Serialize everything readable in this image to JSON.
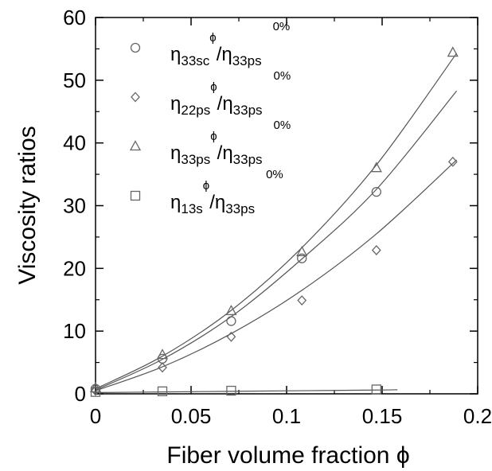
{
  "chart_data": {
    "type": "scatter",
    "title": "",
    "xlabel": "Fiber volume fraction ϕ",
    "ylabel": "Viscosity ratios",
    "xlim": [
      0,
      0.2
    ],
    "ylim": [
      0,
      60
    ],
    "xticks": [
      "0",
      "0.05",
      "0.1",
      "0.15",
      "0.2"
    ],
    "yticks": [
      "0",
      "10",
      "20",
      "30",
      "40",
      "50",
      "60"
    ],
    "grid": false,
    "legend_position": "top-left",
    "series": [
      {
        "name": "η 33sc ϕ / η 33ps 0%",
        "legend": {
          "eta": "η",
          "sub1": "33sc",
          "sup1": "ϕ",
          "slash": "/",
          "eta2": "η",
          "sub2": "33ps",
          "sup2": "0%"
        },
        "marker": "circle",
        "x": [
          0,
          0.035,
          0.071,
          0.108,
          0.147
        ],
        "y": [
          0.8,
          5.6,
          11.6,
          21.6,
          32.2
        ],
        "fit": [
          [
            0,
            0.6
          ],
          [
            0.035,
            5.5
          ],
          [
            0.071,
            12.3
          ],
          [
            0.108,
            21.5
          ],
          [
            0.147,
            32.6
          ],
          [
            0.189,
            48.3
          ]
        ]
      },
      {
        "name": "η 22ps ϕ / η 33ps 0%",
        "legend": {
          "eta": "η",
          "sub1": "22ps",
          "sup1": "ϕ",
          "slash": "/",
          "eta2": "η",
          "sub2": "33ps",
          "sup2": "0%"
        },
        "marker": "diamond",
        "x": [
          0,
          0.035,
          0.071,
          0.108,
          0.147,
          0.187
        ],
        "y": [
          0.5,
          4.2,
          9.1,
          14.9,
          22.9,
          37.0
        ],
        "fit": [
          [
            0,
            0.5
          ],
          [
            0.035,
            4.3
          ],
          [
            0.071,
            9.6
          ],
          [
            0.108,
            16.5
          ],
          [
            0.147,
            25.5
          ],
          [
            0.189,
            37.3
          ]
        ]
      },
      {
        "name": "η 33ps ϕ / η 33ps 0%",
        "legend": {
          "eta": "η",
          "sub1": "33ps",
          "sup1": "ϕ",
          "slash": "/",
          "eta2": "η",
          "sub2": "33ps",
          "sup2": "0%"
        },
        "marker": "triangle",
        "x": [
          0,
          0.035,
          0.071,
          0.108,
          0.147,
          0.187
        ],
        "y": [
          0.9,
          6.2,
          13.2,
          22.6,
          36.0,
          54.4
        ],
        "fit": [
          [
            0,
            0.8
          ],
          [
            0.035,
            6.0
          ],
          [
            0.071,
            13.3
          ],
          [
            0.108,
            23.3
          ],
          [
            0.147,
            36.5
          ],
          [
            0.189,
            54.3
          ]
        ]
      },
      {
        "name": "η 13s ϕ / η 33ps 0%",
        "legend": {
          "eta": "η",
          "sub1": "13s",
          "sup1": "ϕ",
          "slash": "/",
          "eta2": "η",
          "sub2": "33ps",
          "sup2": "0%"
        },
        "marker": "square",
        "x": [
          0,
          0.035,
          0.071,
          0.147
        ],
        "y": [
          0.3,
          0.4,
          0.5,
          0.7
        ],
        "fit": [
          [
            0,
            0.2
          ],
          [
            0.035,
            0.3
          ],
          [
            0.071,
            0.4
          ],
          [
            0.108,
            0.5
          ],
          [
            0.147,
            0.6
          ],
          [
            0.158,
            0.65
          ]
        ]
      }
    ]
  }
}
